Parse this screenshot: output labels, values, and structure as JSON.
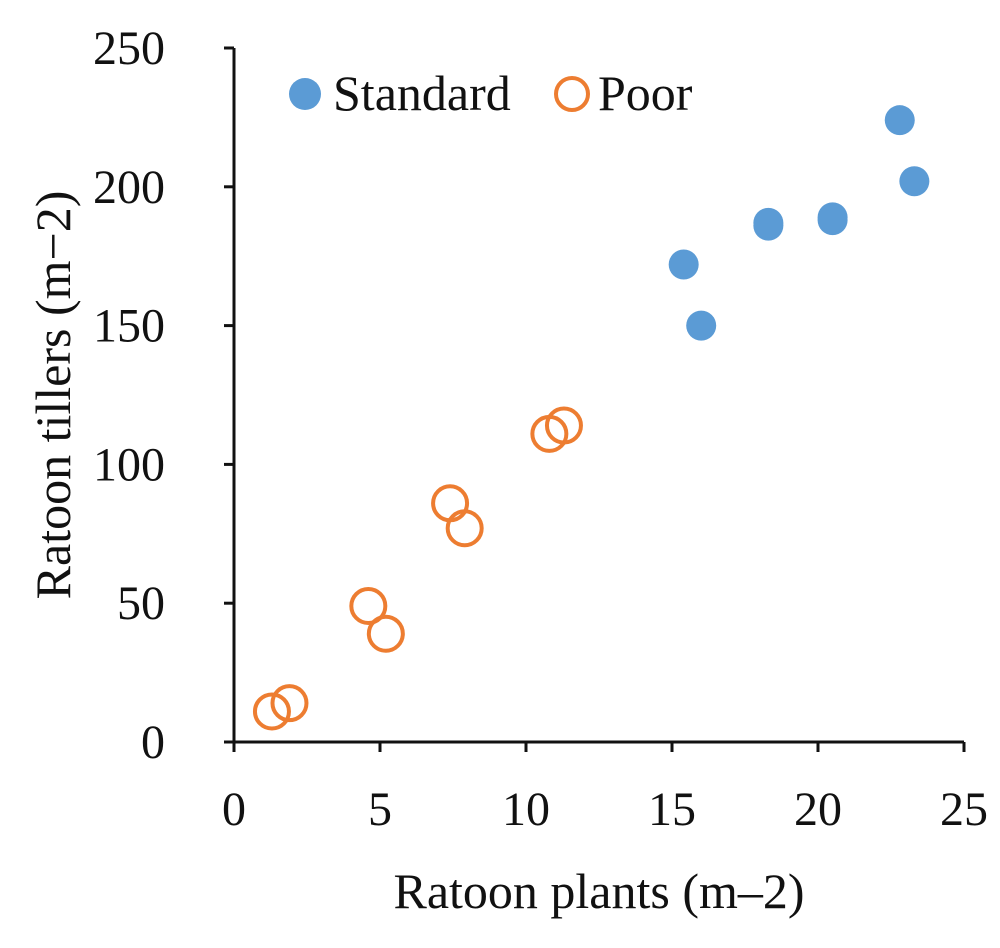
{
  "chart_data": {
    "type": "scatter",
    "xlabel": "Ratoon plants (m–2)",
    "ylabel": "Ratoon tillers  (m−2)",
    "xlim": [
      0,
      25
    ],
    "ylim": [
      0,
      250
    ],
    "xticks": [
      "0",
      "5",
      "10",
      "15",
      "20",
      "25"
    ],
    "yticks": [
      "0",
      "50",
      "100",
      "150",
      "200",
      "250"
    ],
    "grid": false,
    "legend_position": "top-left",
    "series": [
      {
        "name": "Standard",
        "marker": "filled-circle",
        "color": "#5b9bd5",
        "points": [
          {
            "x": 15.4,
            "y": 172
          },
          {
            "x": 16.0,
            "y": 150
          },
          {
            "x": 18.3,
            "y": 186
          },
          {
            "x": 18.3,
            "y": 187
          },
          {
            "x": 20.5,
            "y": 188
          },
          {
            "x": 20.5,
            "y": 189
          },
          {
            "x": 22.8,
            "y": 224
          },
          {
            "x": 23.3,
            "y": 202
          }
        ]
      },
      {
        "name": "Poor",
        "marker": "open-circle",
        "color": "#ed7d31",
        "points": [
          {
            "x": 1.3,
            "y": 11
          },
          {
            "x": 1.9,
            "y": 14
          },
          {
            "x": 4.6,
            "y": 49
          },
          {
            "x": 5.2,
            "y": 39
          },
          {
            "x": 7.4,
            "y": 86
          },
          {
            "x": 7.9,
            "y": 77
          },
          {
            "x": 10.8,
            "y": 111
          },
          {
            "x": 11.3,
            "y": 114
          }
        ]
      }
    ]
  }
}
